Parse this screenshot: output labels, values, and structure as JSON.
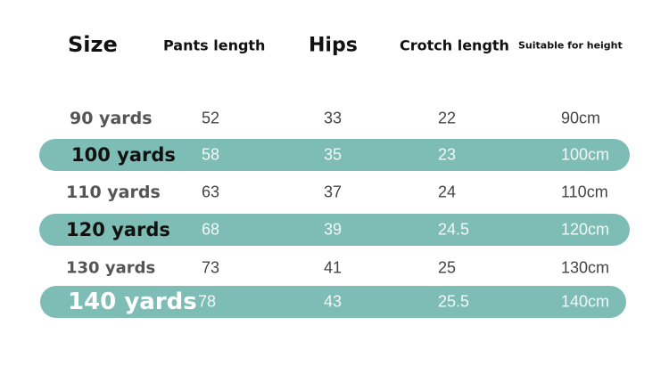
{
  "header": [
    "Size",
    "Pants length",
    "Hips",
    "Crotch length",
    "Suitable for height"
  ],
  "rows": [
    [
      "90 yards",
      "52",
      "33",
      "22",
      "90cm"
    ],
    [
      "100 yards",
      "58",
      "35",
      "23",
      "100cm"
    ],
    [
      "110 yards",
      "63",
      "37",
      "24",
      "110cm"
    ],
    [
      "120 yards",
      "68",
      "39",
      "24.5",
      "120cm"
    ],
    [
      "130 yards",
      "73",
      "41",
      "25",
      "130cm"
    ],
    [
      "140 yards",
      "78",
      "43",
      "25.5",
      "140cm"
    ]
  ]
}
